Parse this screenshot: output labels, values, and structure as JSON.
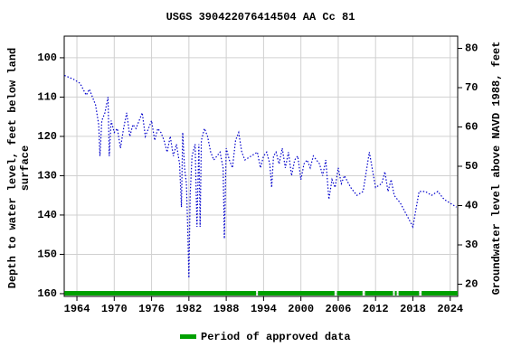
{
  "chart_data": {
    "type": "line",
    "title": "USGS 390422076414504 AA Cc  81",
    "y_label": [
      "Depth to water level, feet below land",
      "surface"
    ],
    "y2_label": "Groundwater level above NAVD 1988, feet",
    "x": [
      1962.0,
      1963.5,
      1964.5,
      1965.0,
      1965.5,
      1966.0,
      1966.5,
      1967.0,
      1967.5,
      1967.7,
      1968.0,
      1968.5,
      1969.0,
      1969.2,
      1969.5,
      1970.0,
      1970.5,
      1971.0,
      1971.5,
      1972.0,
      1972.5,
      1973.0,
      1973.5,
      1974.0,
      1974.5,
      1975.0,
      1975.5,
      1976.0,
      1976.5,
      1977.0,
      1977.5,
      1978.0,
      1978.5,
      1979.0,
      1979.5,
      1980.0,
      1980.5,
      1980.8,
      1981.0,
      1981.3,
      1981.6,
      1981.8,
      1982.0,
      1982.2,
      1982.5,
      1983.0,
      1983.3,
      1983.6,
      1983.8,
      1984.0,
      1984.5,
      1985.0,
      1985.5,
      1986.0,
      1986.5,
      1987.0,
      1987.5,
      1987.7,
      1988.0,
      1988.5,
      1989.0,
      1989.5,
      1990.0,
      1990.5,
      1991.0,
      1992.0,
      1993.0,
      1993.5,
      1994.0,
      1994.5,
      1995.0,
      1995.3,
      1995.6,
      1996.0,
      1996.5,
      1997.0,
      1997.5,
      1998.0,
      1998.5,
      1999.0,
      1999.5,
      2000.0,
      2000.5,
      2001.0,
      2001.5,
      2002.0,
      2002.5,
      2003.0,
      2003.5,
      2004.0,
      2004.5,
      2005.0,
      2005.5,
      2006.0,
      2006.5,
      2007.0,
      2008.0,
      2009.0,
      2010.0,
      2011.0,
      2012.0,
      2013.0,
      2013.5,
      2014.0,
      2014.5,
      2015.0,
      2016.0,
      2017.0,
      2018.0,
      2019.0,
      2020.0,
      2021.0,
      2022.0,
      2023.0,
      2024.0,
      2025.0
    ],
    "series": [
      {
        "color": "#0000cc",
        "values": [
          104.5,
          105.5,
          106.5,
          108,
          109.5,
          108,
          110,
          112,
          117,
          125,
          116,
          114,
          110,
          125,
          116,
          119,
          118,
          123,
          118,
          114,
          120,
          117,
          118,
          116,
          114,
          120,
          118,
          116,
          121,
          118,
          119,
          121,
          124,
          120,
          125,
          122,
          127,
          138,
          119,
          128,
          132,
          143,
          156,
          135,
          125,
          122,
          143,
          122,
          143,
          121,
          118,
          120,
          124,
          126,
          125,
          124,
          128,
          146,
          123,
          126,
          128,
          121,
          119,
          124,
          126,
          125,
          124,
          128,
          125,
          124,
          127,
          133,
          125,
          124,
          127,
          123,
          128,
          124,
          130,
          126,
          125,
          131,
          127,
          126,
          128,
          125,
          126,
          127,
          130,
          126,
          136,
          131,
          133,
          128,
          132,
          130,
          133,
          135,
          134,
          124,
          133,
          132,
          129,
          134,
          131,
          135,
          137,
          140,
          143,
          134,
          134,
          135,
          134,
          136,
          137,
          138
        ]
      }
    ],
    "xlim": [
      1961.96,
      2025.2
    ],
    "xticks": [
      1964,
      1970,
      1976,
      1982,
      1988,
      1994,
      2000,
      2006,
      2012,
      2018,
      2024
    ],
    "ylim": [
      160.7,
      94.5
    ],
    "yticks": [
      100,
      110,
      120,
      130,
      140,
      150,
      160
    ],
    "y2lim": [
      16.9,
      83.1
    ],
    "y2ticks": [
      20,
      30,
      40,
      50,
      60,
      70,
      80
    ],
    "grid": true,
    "approved": {
      "name": "Period of approved data",
      "color": "#00a000",
      "intervals": [
        [
          1962.0,
          1992.8
        ],
        [
          1993.1,
          2005.4
        ],
        [
          2005.8,
          2009.9
        ],
        [
          2010.3,
          2014.8
        ],
        [
          2015.1,
          2015.4
        ],
        [
          2015.7,
          2019.0
        ],
        [
          2019.4,
          2025.2
        ]
      ]
    }
  }
}
